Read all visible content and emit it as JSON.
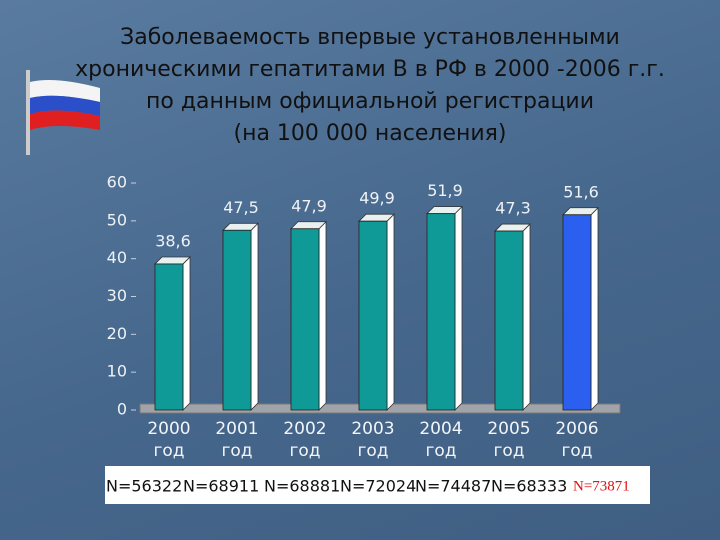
{
  "chart_data": {
    "type": "bar",
    "title": [
      "Заболеваемость впервые установленными",
      "хроническими гепатитами В  в РФ в 2000 -2006 г.г.",
      "по данным официальной регистрации",
      "(на 100 000 населения)"
    ],
    "categories": [
      "2000 год",
      "2001 год",
      "2002 год",
      "2003 год",
      "2004 год",
      "2005 год",
      "2006 год"
    ],
    "values": [
      38.6,
      47.5,
      47.9,
      49.9,
      51.9,
      47.3,
      51.6
    ],
    "value_labels": [
      "38,6",
      "47,5",
      "47,9",
      "49,9",
      "51,9",
      "47,3",
      "51,6"
    ],
    "colors": [
      "#0f9a98",
      "#0f9a98",
      "#0f9a98",
      "#0f9a98",
      "#0f9a98",
      "#0f9a98",
      "#2b5ff0"
    ],
    "ylim": [
      0,
      60
    ],
    "yticks": [
      0,
      10,
      20,
      30,
      40,
      50,
      60
    ],
    "grid": false,
    "annotations": [
      "N=56322",
      "N=68911",
      "N=68881",
      "N=72024",
      "N=74487",
      "N=68333",
      "N=73871"
    ]
  }
}
